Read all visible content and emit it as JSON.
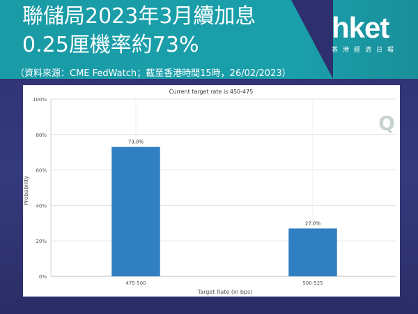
{
  "header": {
    "title_line1": "聯儲局2023年3月續加息",
    "title_line2": "0.25厘機率約73%",
    "source": "（資料來源：CME FedWatch；截至香港時間15時，26/02/2023）"
  },
  "logo": {
    "main": "hket",
    "sub": "香港經濟日報"
  },
  "colors": {
    "header_bg": "#1a9ba6",
    "page_bg": "#2d2f6e",
    "bar": "#2f7fc1"
  },
  "chart_data": {
    "type": "bar",
    "title": "Current target rate is 450-475",
    "xlabel": "Target Rate (in bps)",
    "ylabel": "Probability",
    "categories": [
      "475-500",
      "500-525"
    ],
    "values": [
      73.0,
      27.0
    ],
    "value_labels": [
      "73.0%",
      "27.0%"
    ],
    "ylim": [
      0,
      100
    ],
    "yticks": [
      "0%",
      "20%",
      "40%",
      "60%",
      "80%",
      "100%"
    ],
    "grid": true
  },
  "watermark": "Q"
}
